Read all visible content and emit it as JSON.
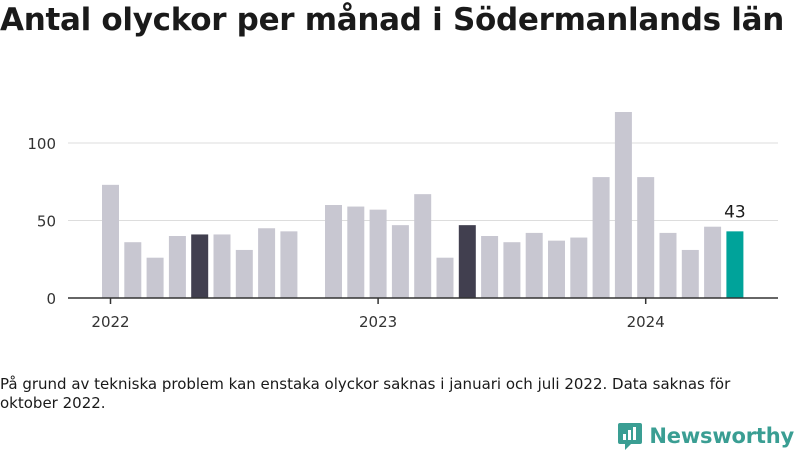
{
  "title": "Antal olyckor per månad i Södermanlands län",
  "footnote": "På grund av tekniska problem kan enstaka olyckor saknas i januari och juli 2022. Data saknas för oktober 2022.",
  "brand": "Newsworthy",
  "colors": {
    "default_bar": "#c8c7d1",
    "same_month_prev_years": "#413f4f",
    "latest": "#00a39a",
    "axis": "#333333",
    "grid": "#dddddd",
    "brand": "#3a9e93"
  },
  "chart_data": {
    "type": "bar",
    "x_tick_labels": [
      "2022",
      "2023",
      "2024"
    ],
    "y_tick_labels": [
      "0",
      "50",
      "100"
    ],
    "ylim": [
      0,
      125
    ],
    "months": [
      "2022-01",
      "2022-02",
      "2022-03",
      "2022-04",
      "2022-05",
      "2022-06",
      "2022-07",
      "2022-08",
      "2022-09",
      "2022-10",
      "2022-11",
      "2022-12",
      "2023-01",
      "2023-02",
      "2023-03",
      "2023-04",
      "2023-05",
      "2023-06",
      "2023-07",
      "2023-08",
      "2023-09",
      "2023-10",
      "2023-11",
      "2023-12",
      "2024-01",
      "2024-02",
      "2024-03",
      "2024-04",
      "2024-05"
    ],
    "values": [
      73,
      36,
      26,
      40,
      41,
      41,
      31,
      45,
      43,
      null,
      60,
      59,
      57,
      47,
      67,
      26,
      47,
      40,
      36,
      42,
      37,
      39,
      78,
      120,
      78,
      42,
      31,
      46,
      43
    ],
    "highlight": [
      null,
      null,
      null,
      null,
      "same_month_prev_years",
      null,
      null,
      null,
      null,
      null,
      null,
      null,
      null,
      null,
      null,
      null,
      "same_month_prev_years",
      null,
      null,
      null,
      null,
      null,
      null,
      null,
      null,
      null,
      null,
      null,
      "latest"
    ],
    "annotation": {
      "month": "2024-05",
      "label": "43"
    }
  }
}
